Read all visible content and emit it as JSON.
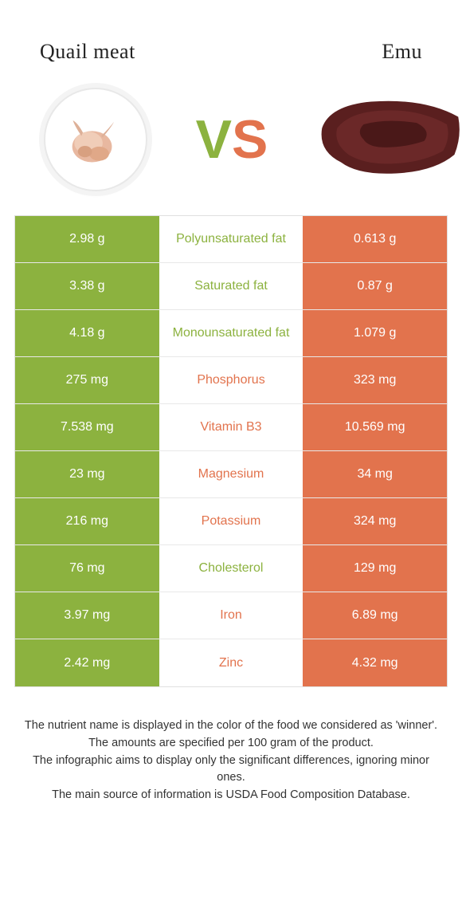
{
  "colors": {
    "green": "#8cb23f",
    "orange": "#e2734d",
    "text": "#222222",
    "row_border": "#e8e8e8"
  },
  "header": {
    "left_title": "Quail meat",
    "right_title": "Emu"
  },
  "vs": {
    "v_color": "#8cb23f",
    "s_color": "#e2734d"
  },
  "rows": [
    {
      "left": "2.98 g",
      "label": "Polyunsaturated fat",
      "right": "0.613 g",
      "winner": "left"
    },
    {
      "left": "3.38 g",
      "label": "Saturated fat",
      "right": "0.87 g",
      "winner": "left"
    },
    {
      "left": "4.18 g",
      "label": "Monounsaturated fat",
      "right": "1.079 g",
      "winner": "left"
    },
    {
      "left": "275 mg",
      "label": "Phosphorus",
      "right": "323 mg",
      "winner": "right"
    },
    {
      "left": "7.538 mg",
      "label": "Vitamin B3",
      "right": "10.569 mg",
      "winner": "right"
    },
    {
      "left": "23 mg",
      "label": "Magnesium",
      "right": "34 mg",
      "winner": "right"
    },
    {
      "left": "216 mg",
      "label": "Potassium",
      "right": "324 mg",
      "winner": "right"
    },
    {
      "left": "76 mg",
      "label": "Cholesterol",
      "right": "129 mg",
      "winner": "left"
    },
    {
      "left": "3.97 mg",
      "label": "Iron",
      "right": "6.89 mg",
      "winner": "right"
    },
    {
      "left": "2.42 mg",
      "label": "Zinc",
      "right": "4.32 mg",
      "winner": "right"
    }
  ],
  "footer": {
    "line1": "The nutrient name is displayed in the color of the food we considered as 'winner'.",
    "line2": "The amounts are specified per 100 gram of the product.",
    "line3": "The infographic aims to display only the significant differences, ignoring minor ones.",
    "line4": "The main source of information is USDA Food Composition Database."
  }
}
